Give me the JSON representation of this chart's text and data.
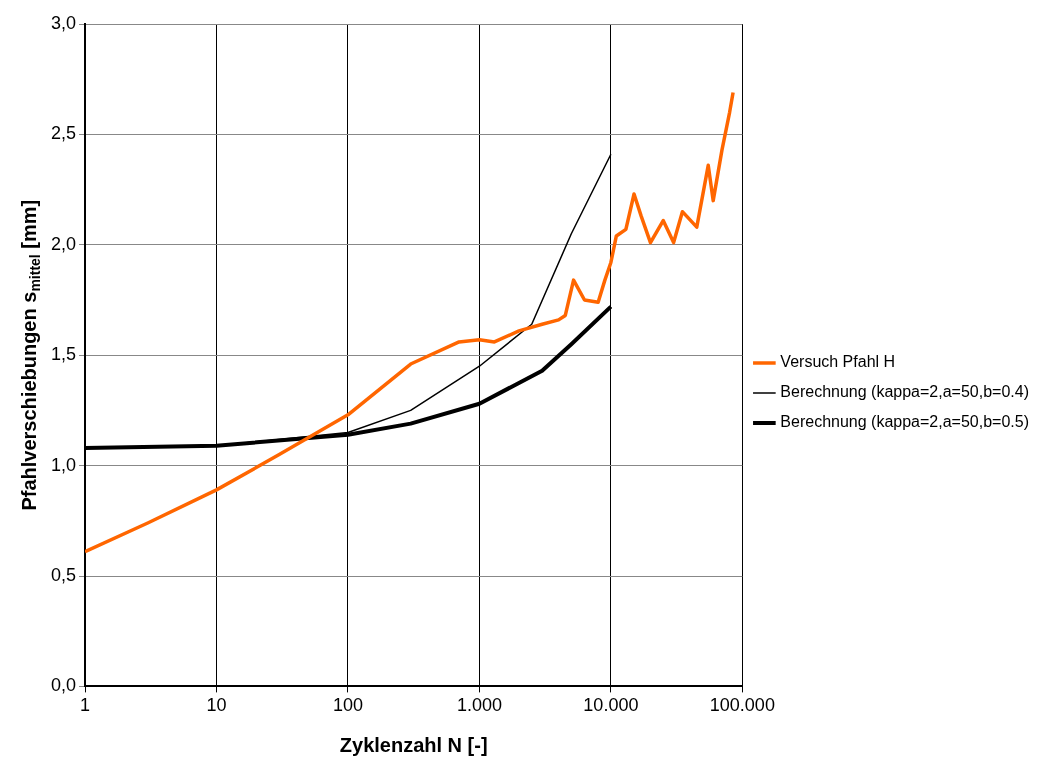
{
  "chart_data": {
    "type": "line",
    "xlabel": "Zyklenzahl N [-]",
    "ylabel": "Pfahlverschiebungen s$_{mittel}$ [mm]",
    "log": "x",
    "grid": true,
    "legend": "right",
    "marker": "none",
    "line_style": "solid",
    "xlim": [
      1,
      100000
    ],
    "xticks": [
      1,
      10,
      100,
      {
        "value": 1000,
        "label": "1.000"
      },
      {
        "value": 10000,
        "label": "10.000"
      },
      {
        "value": 100000,
        "label": "100.000"
      }
    ],
    "ylim": [
      0,
      3
    ],
    "yticks": [
      {
        "value": 0,
        "label": "0,0"
      },
      {
        "value": 0.5,
        "label": "0,5"
      },
      {
        "value": 1,
        "label": "1,0"
      },
      {
        "value": 1.5,
        "label": "1,5"
      },
      {
        "value": 2,
        "label": "2,0"
      },
      {
        "value": 2.5,
        "label": "2,5"
      },
      {
        "value": 3,
        "label": "3,0"
      }
    ],
    "series": [
      {
        "name": "Versuch Pfahl H",
        "color": "#ff6600",
        "x": [
          1,
          3,
          10,
          30,
          100,
          300,
          700,
          1000,
          1300,
          2000,
          3000,
          4000,
          4500,
          5200,
          6300,
          8000,
          9000,
          10000,
          11000,
          13000,
          15000,
          17000,
          20000,
          25000,
          30000,
          35000,
          45000,
          55000,
          60000,
          70000,
          80000,
          85000
        ],
        "values": [
          0.61,
          0.74,
          0.89,
          1.05,
          1.23,
          1.46,
          1.56,
          1.57,
          1.56,
          1.61,
          1.64,
          1.66,
          1.68,
          1.84,
          1.75,
          1.74,
          1.84,
          1.92,
          2.04,
          2.07,
          2.23,
          2.13,
          2.01,
          2.11,
          2.01,
          2.15,
          2.08,
          2.36,
          2.2,
          2.43,
          2.6,
          2.69
        ]
      },
      {
        "name": "Berechnung (kappa=2,a=50,b=0.4)",
        "color": "#000000",
        "x": [
          1,
          10,
          100,
          300,
          1000,
          2500,
          5000,
          10000
        ],
        "values": [
          1.08,
          1.09,
          1.15,
          1.25,
          1.45,
          1.64,
          2.05,
          2.41
        ]
      },
      {
        "name": "Berechnung (kappa=2,a=50,b=0.5)",
        "color": "#000000",
        "x": [
          1,
          10,
          100,
          300,
          1000,
          3000,
          5000,
          10000
        ],
        "values": [
          1.08,
          1.09,
          1.14,
          1.19,
          1.28,
          1.43,
          1.55,
          1.72
        ]
      }
    ]
  }
}
